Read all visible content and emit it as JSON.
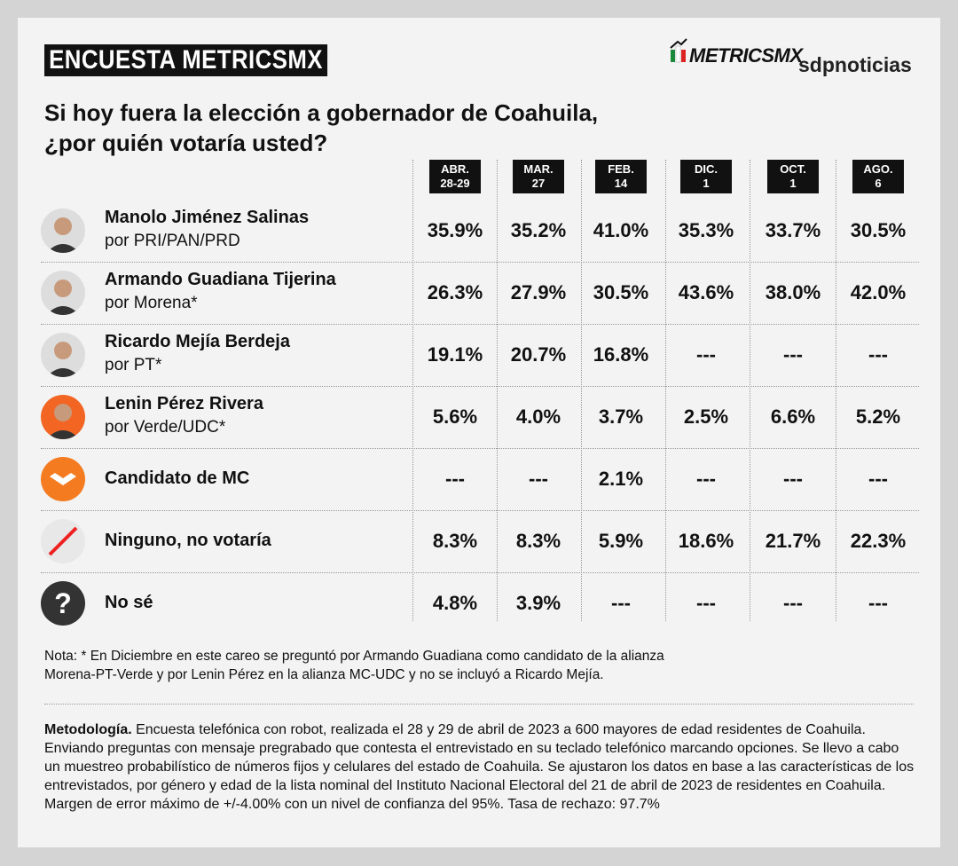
{
  "header": {
    "badge": "ENCUESTA METRICSMX",
    "logo": "METRICSMX",
    "publisher": "sdpnoticias"
  },
  "title": [
    "Si hoy fuera la elección a gobernador de Coahuila,",
    "¿por quién votaría usted?"
  ],
  "table": {
    "columns": [
      {
        "month": "ABR.",
        "day": "28-29"
      },
      {
        "month": "MAR.",
        "day": "27"
      },
      {
        "month": "FEB.",
        "day": "14"
      },
      {
        "month": "DIC.",
        "day": "1"
      },
      {
        "month": "OCT.",
        "day": "1"
      },
      {
        "month": "AGO.",
        "day": "6"
      }
    ],
    "rows": [
      {
        "name": "Manolo Jiménez Salinas",
        "party": "por PRI/PAN/PRD",
        "values": [
          "35.9%",
          "35.2%",
          "41.0%",
          "35.3%",
          "33.7%",
          "30.5%"
        ]
      },
      {
        "name": "Armando Guadiana Tijerina",
        "party": "por Morena*",
        "values": [
          "26.3%",
          "27.9%",
          "30.5%",
          "43.6%",
          "38.0%",
          "42.0%"
        ]
      },
      {
        "name": "Ricardo Mejía Berdeja",
        "party": "por PT*",
        "values": [
          "19.1%",
          "20.7%",
          "16.8%",
          "---",
          "---",
          "---"
        ]
      },
      {
        "name": "Lenin Pérez Rivera",
        "party": "por Verde/UDC*",
        "values": [
          "5.6%",
          "4.0%",
          "3.7%",
          "2.5%",
          "6.6%",
          "5.2%"
        ]
      },
      {
        "name": "Candidato de MC",
        "values": [
          "---",
          "---",
          "2.1%",
          "---",
          "---",
          "---"
        ]
      },
      {
        "name": "Ninguno, no votaría",
        "values": [
          "8.3%",
          "8.3%",
          "5.9%",
          "18.6%",
          "21.7%",
          "22.3%"
        ]
      },
      {
        "name": "No sé",
        "icon": "?",
        "values": [
          "4.8%",
          "3.9%",
          "---",
          "---",
          "---",
          "---"
        ]
      }
    ]
  },
  "note": [
    "Nota: * En Diciembre en este careo se preguntó por Armando Guadiana como candidato de la alianza",
    "Morena-PT-Verde y por Lenin Pérez en la alianza MC-UDC y no se incluyó a Ricardo Mejía."
  ],
  "methodology": {
    "label": "Metodología.",
    "text": "Encuesta telefónica con robot, realizada el 28 y 29 de abril de 2023 a 600 mayores de edad residentes de Coahuila. Enviando preguntas con mensaje pregrabado que contesta el entrevistado en su teclado telefónico marcando opciones. Se llevo a cabo un muestreo probabilístico de números fijos y celulares del estado de Coahuila. Se ajustaron los datos en base a las características de los entrevistados, por género y edad de la lista nominal del Instituto Nacional Electoral del 21 de abril de 2023 de residentes en Coahuila. Margen de error máximo de +/-4.00% con un nivel de confianza del 95%. Tasa de rechazo: 97.7%"
  }
}
